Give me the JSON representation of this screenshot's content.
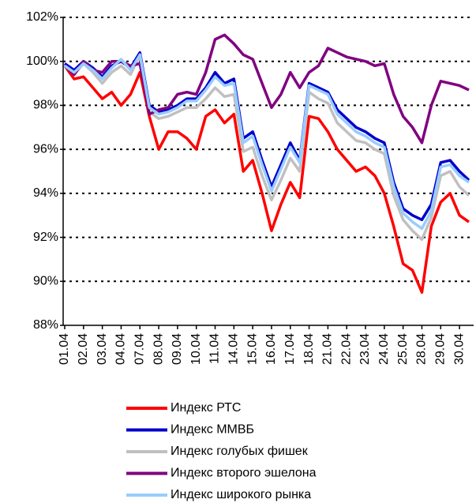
{
  "chart_data": {
    "type": "line",
    "categories": [
      "01.04",
      null,
      "02.04",
      null,
      "03.04",
      null,
      "04.04",
      null,
      "07.04",
      null,
      "08.04",
      null,
      "09.04",
      null,
      "10.04",
      null,
      "11.04",
      null,
      "14.04",
      null,
      "15.04",
      null,
      "16.04",
      null,
      "17.04",
      null,
      "18.04",
      null,
      "21.04",
      null,
      "22.04",
      null,
      "23.04",
      null,
      "24.04",
      null,
      "25.04",
      null,
      "28.04",
      null,
      "29.04",
      null,
      "30.04",
      null
    ],
    "series": [
      {
        "name": "Индекс РТС",
        "color": "#ff0000",
        "values": [
          99.8,
          99.2,
          99.3,
          98.8,
          98.3,
          98.6,
          98.0,
          98.5,
          99.5,
          97.5,
          96.0,
          96.8,
          96.8,
          96.5,
          96.0,
          97.5,
          97.8,
          97.2,
          97.6,
          95.0,
          95.5,
          94.0,
          92.3,
          93.5,
          94.5,
          93.8,
          97.5,
          97.4,
          96.8,
          96.0,
          95.5,
          95.0,
          95.2,
          94.8,
          94.0,
          92.5,
          90.8,
          90.5,
          89.5,
          92.5,
          93.6,
          94.0,
          93.0,
          92.7
        ]
      },
      {
        "name": "Индекс ММВБ",
        "color": "#0000cc",
        "values": [
          99.9,
          99.6,
          100.0,
          99.7,
          99.3,
          99.8,
          100.0,
          99.7,
          100.4,
          98.0,
          97.7,
          97.8,
          98.0,
          98.3,
          98.3,
          98.8,
          99.5,
          99.0,
          99.2,
          96.5,
          96.8,
          95.5,
          94.3,
          95.3,
          96.3,
          95.5,
          99.0,
          98.8,
          98.6,
          97.8,
          97.4,
          97.0,
          96.8,
          96.5,
          96.3,
          94.5,
          93.3,
          93.0,
          92.8,
          93.5,
          95.4,
          95.5,
          95.0,
          94.6
        ]
      },
      {
        "name": "Индекс голубых фишек",
        "color": "#c0c0c0",
        "values": [
          99.8,
          99.4,
          99.9,
          99.5,
          99.0,
          99.5,
          99.8,
          99.4,
          100.3,
          97.7,
          97.4,
          97.5,
          97.7,
          97.9,
          97.9,
          98.3,
          98.8,
          98.4,
          98.5,
          95.9,
          96.1,
          94.8,
          93.7,
          94.6,
          95.6,
          95.0,
          98.6,
          98.3,
          98.1,
          97.2,
          96.8,
          96.4,
          96.3,
          96.0,
          95.8,
          93.9,
          92.8,
          92.3,
          91.9,
          92.9,
          94.8,
          95.0,
          94.3,
          93.9
        ]
      },
      {
        "name": "Индекс второго эшелона",
        "color": "#800080",
        "values": [
          99.8,
          99.4,
          100.0,
          99.6,
          99.5,
          100.0,
          100.0,
          99.8,
          99.9,
          97.6,
          97.8,
          97.9,
          98.5,
          98.6,
          98.5,
          99.5,
          101.0,
          101.2,
          100.8,
          100.3,
          100.1,
          99.0,
          97.9,
          98.5,
          99.5,
          98.8,
          99.5,
          99.8,
          100.6,
          100.4,
          100.2,
          100.1,
          100.0,
          99.8,
          99.9,
          98.5,
          97.5,
          97.0,
          96.3,
          98.0,
          99.1,
          99.0,
          98.9,
          98.7
        ]
      },
      {
        "name": "Индекс широкого рынка",
        "color": "#99ccff",
        "values": [
          99.8,
          99.5,
          99.9,
          99.6,
          99.2,
          99.7,
          100.1,
          99.6,
          100.3,
          97.9,
          97.6,
          97.7,
          97.9,
          98.2,
          98.2,
          98.7,
          99.3,
          98.9,
          99.0,
          96.3,
          96.6,
          95.3,
          94.1,
          95.1,
          96.1,
          95.4,
          98.9,
          98.7,
          98.5,
          97.6,
          97.2,
          96.8,
          96.6,
          96.3,
          96.1,
          94.3,
          93.1,
          92.7,
          92.4,
          93.2,
          95.2,
          95.3,
          94.8,
          94.5
        ]
      }
    ],
    "ylim": [
      88,
      102
    ],
    "yticks": [
      {
        "value": 88,
        "label": "88%"
      },
      {
        "value": 90,
        "label": "90%"
      },
      {
        "value": 92,
        "label": "92%"
      },
      {
        "value": 94,
        "label": "94%"
      },
      {
        "value": 96,
        "label": "96%"
      },
      {
        "value": 98,
        "label": "98%"
      },
      {
        "value": 100,
        "label": "100%"
      },
      {
        "value": 102,
        "label": "102%"
      }
    ],
    "grid": true
  }
}
